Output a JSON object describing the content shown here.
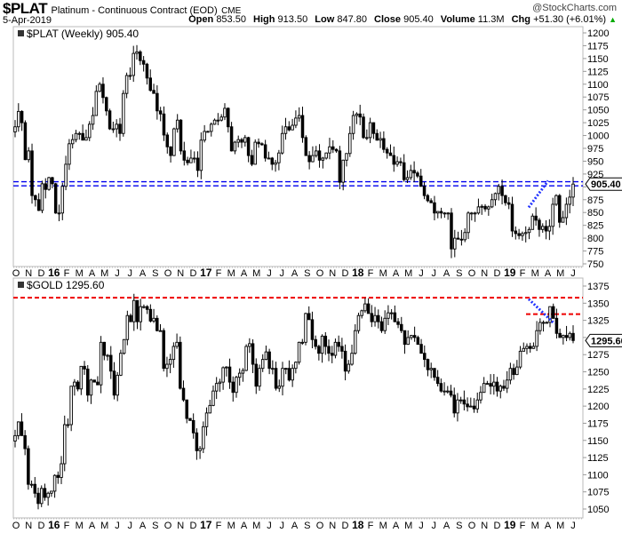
{
  "header": {
    "symbol": "$PLAT",
    "description": "Platinum - Continuous Contract (EOD)",
    "exchange": "CME",
    "brand": "@StockCharts.com",
    "date": "5-Apr-2019",
    "open_label": "Open",
    "open": "853.50",
    "high_label": "High",
    "high": "913.50",
    "low_label": "Low",
    "low": "847.80",
    "close_label": "Close",
    "close": "905.40",
    "volume_label": "Volume",
    "volume": "11.3M",
    "chg_label": "Chg",
    "chg": "+51.30 (+6.01%)",
    "chg_arrow": "▲"
  },
  "colors": {
    "up_fill": "#ffffff",
    "down_fill": "#000000",
    "support": "#0000ee",
    "resistance": "#ee0000",
    "trend": "#2233ff"
  },
  "chart_data": [
    {
      "type": "candlestick",
      "title": "$PLAT (Weekly) 905.40",
      "last_value_tag": "905.40",
      "ylim": [
        750,
        1200
      ],
      "yticks": [
        750,
        775,
        800,
        825,
        850,
        875,
        900,
        925,
        950,
        975,
        1000,
        1025,
        1050,
        1075,
        1100,
        1125,
        1150,
        1175,
        1200
      ],
      "ytick_labels": [
        "750",
        "775",
        "800",
        "825",
        "850",
        "875",
        "",
        "925",
        "950",
        "975",
        "1000",
        "1025",
        "1050",
        "1075",
        "1100",
        "1125",
        "1150",
        "1175",
        "1200"
      ],
      "period": "weekly",
      "date_range": [
        "Oct 2015",
        "5-Apr-2019"
      ],
      "closes": [
        1017,
        1047,
        1025,
        953,
        970,
        883,
        875,
        854,
        906,
        895,
        918,
        906,
        849,
        849,
        901,
        944,
        984,
        992,
        1004,
        1004,
        991,
        996,
        1022,
        1039,
        1086,
        1100,
        1074,
        1048,
        1013,
        1013,
        1022,
        1004,
        1082,
        1117,
        1117,
        1160,
        1163,
        1146,
        1139,
        1112,
        1088,
        1082,
        1048,
        1042,
        1001,
        978,
        961,
        1013,
        1030,
        970,
        952,
        947,
        956,
        956,
        932,
        991,
        1008,
        1008,
        1022,
        1030,
        1030,
        1036,
        1053,
        1017,
        970,
        987,
        992,
        987,
        996,
        961,
        944,
        987,
        984,
        982,
        956,
        956,
        944,
        947,
        966,
        1004,
        1017,
        1011,
        1020,
        1034,
        1039,
        996,
        961,
        949,
        961,
        970,
        952,
        956,
        966,
        978,
        973,
        970,
        909,
        952,
        965,
        1004,
        1039,
        1042,
        1036,
        996,
        996,
        1025,
        1004,
        991,
        994,
        973,
        966,
        961,
        944,
        949,
        947,
        914,
        918,
        932,
        927,
        921,
        901,
        883,
        873,
        869,
        849,
        852,
        849,
        849,
        849,
        779,
        800,
        798,
        797,
        811,
        849,
        849,
        849,
        861,
        862,
        857,
        861,
        875,
        887,
        901,
        883,
        869,
        866,
        814,
        809,
        805,
        809,
        811,
        817,
        843,
        835,
        817,
        823,
        814,
        823,
        866,
        883,
        831,
        840,
        866,
        880,
        905.4
      ],
      "horizontal_lines": [
        {
          "value": 910,
          "style": "blue-dashed"
        },
        {
          "value": 902,
          "style": "blue-dashed"
        }
      ],
      "trend_line": {
        "from": [
          "Feb 2019",
          860
        ],
        "to": [
          "Apr 2019",
          912
        ],
        "style": "blue-dotted"
      }
    },
    {
      "type": "candlestick",
      "title": "$GOLD 1295.60",
      "last_value_tag": "1295.60",
      "ylim": [
        1040,
        1380
      ],
      "yticks": [
        1050,
        1075,
        1100,
        1125,
        1150,
        1175,
        1200,
        1225,
        1250,
        1275,
        1300,
        1325,
        1350,
        1375
      ],
      "ytick_labels": [
        "1050",
        "1075",
        "1100",
        "1125",
        "1150",
        "1175",
        "1200",
        "1225",
        "1250",
        "1275",
        "",
        "1325",
        "1350",
        "1375"
      ],
      "period": "weekly",
      "closes": [
        1157,
        1177,
        1157,
        1138,
        1086,
        1086,
        1073,
        1058,
        1080,
        1067,
        1073,
        1076,
        1099,
        1096,
        1116,
        1173,
        1173,
        1229,
        1235,
        1225,
        1258,
        1254,
        1216,
        1238,
        1235,
        1231,
        1293,
        1274,
        1274,
        1251,
        1216,
        1245,
        1277,
        1297,
        1332,
        1323,
        1354,
        1323,
        1345,
        1345,
        1341,
        1324,
        1328,
        1310,
        1310,
        1255,
        1261,
        1268,
        1287,
        1293,
        1226,
        1209,
        1182,
        1179,
        1161,
        1135,
        1138,
        1170,
        1190,
        1201,
        1222,
        1233,
        1235,
        1256,
        1257,
        1235,
        1220,
        1242,
        1248,
        1252,
        1287,
        1291,
        1261,
        1229,
        1255,
        1268,
        1279,
        1255,
        1255,
        1226,
        1229,
        1255,
        1255,
        1238,
        1255,
        1264,
        1293,
        1293,
        1335,
        1326,
        1297,
        1287,
        1277,
        1302,
        1287,
        1277,
        1274,
        1293,
        1287,
        1280,
        1251,
        1261,
        1277,
        1310,
        1332,
        1339,
        1349,
        1335,
        1323,
        1332,
        1323,
        1310,
        1328,
        1336,
        1336,
        1323,
        1319,
        1310,
        1290,
        1300,
        1303,
        1300,
        1290,
        1277,
        1268,
        1253,
        1255,
        1242,
        1233,
        1222,
        1222,
        1222,
        1216,
        1190,
        1209,
        1209,
        1203,
        1199,
        1200,
        1196,
        1209,
        1220,
        1233,
        1233,
        1229,
        1235,
        1222,
        1229,
        1226,
        1238,
        1255,
        1246,
        1257,
        1280,
        1284,
        1287,
        1284,
        1287,
        1310,
        1322,
        1322,
        1322,
        1345,
        1328,
        1306,
        1300,
        1303,
        1300,
        1306,
        1295.6
      ],
      "horizontal_lines": [
        {
          "value": 1358,
          "style": "red-dashed"
        },
        {
          "value": 1334,
          "style": "red-dashed",
          "from": "Feb 2019"
        }
      ],
      "trend_line": {
        "from": [
          "Feb 2019",
          1356
        ],
        "to": [
          "Apr 2019",
          1320
        ],
        "style": "blue-dotted"
      }
    }
  ],
  "x_axis": {
    "labels": [
      "O",
      "N",
      "D",
      "16",
      "F",
      "M",
      "A",
      "M",
      "J",
      "J",
      "A",
      "S",
      "O",
      "N",
      "D",
      "17",
      "F",
      "M",
      "A",
      "M",
      "J",
      "J",
      "A",
      "S",
      "O",
      "N",
      "D",
      "18",
      "F",
      "M",
      "A",
      "M",
      "J",
      "J",
      "A",
      "S",
      "O",
      "N",
      "D",
      "19",
      "F",
      "M",
      "A",
      "M",
      "J"
    ]
  }
}
